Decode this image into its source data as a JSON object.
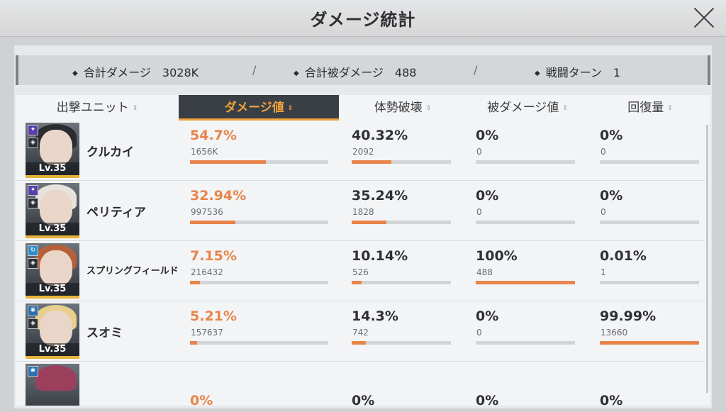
{
  "title": "ダメージ統計",
  "summary": [
    {
      "label": "合計ダメージ",
      "value": "3028K"
    },
    {
      "label": "合計被ダメージ",
      "value": "488"
    },
    {
      "label": "戦闘ターン",
      "value": "1"
    }
  ],
  "summary_sep": "/",
  "headers": [
    {
      "label": "出撃ユニット",
      "active": false
    },
    {
      "label": "ダメージ値",
      "active": true
    },
    {
      "label": "体勢破壊",
      "active": false
    },
    {
      "label": "被ダメージ値",
      "active": false
    },
    {
      "label": "回復量",
      "active": false
    }
  ],
  "sort_glyph": "⇕",
  "rows": [
    {
      "name": "クルカイ",
      "level": "Lv.35",
      "damage": {
        "pct": "54.7%",
        "raw": "1656K",
        "fill": 0.547
      },
      "break": {
        "pct": "40.32%",
        "raw": "2092",
        "fill": 0.4032
      },
      "taken": {
        "pct": "0%",
        "raw": "0",
        "fill": 0
      },
      "heal": {
        "pct": "0%",
        "raw": "0",
        "fill": 0
      }
    },
    {
      "name": "ペリティア",
      "level": "Lv.35",
      "damage": {
        "pct": "32.94%",
        "raw": "997536",
        "fill": 0.3294
      },
      "break": {
        "pct": "35.24%",
        "raw": "1828",
        "fill": 0.3524
      },
      "taken": {
        "pct": "0%",
        "raw": "0",
        "fill": 0
      },
      "heal": {
        "pct": "0%",
        "raw": "0",
        "fill": 0
      }
    },
    {
      "name": "スプリングフィールド",
      "level": "Lv.35",
      "damage": {
        "pct": "7.15%",
        "raw": "216432",
        "fill": 0.0715
      },
      "break": {
        "pct": "10.14%",
        "raw": "526",
        "fill": 0.1014
      },
      "taken": {
        "pct": "100%",
        "raw": "488",
        "fill": 1.0
      },
      "heal": {
        "pct": "0.01%",
        "raw": "1",
        "fill": 0.0001
      }
    },
    {
      "name": "スオミ",
      "level": "Lv.35",
      "damage": {
        "pct": "5.21%",
        "raw": "157637",
        "fill": 0.0521
      },
      "break": {
        "pct": "14.3%",
        "raw": "742",
        "fill": 0.143
      },
      "taken": {
        "pct": "0%",
        "raw": "0",
        "fill": 0
      },
      "heal": {
        "pct": "99.99%",
        "raw": "13660",
        "fill": 0.9999
      }
    },
    {
      "name": "",
      "level": "",
      "damage": {
        "pct": "0%",
        "raw": "",
        "fill": 0
      },
      "break": {
        "pct": "0%",
        "raw": "",
        "fill": 0
      },
      "taken": {
        "pct": "0%",
        "raw": "",
        "fill": 0
      },
      "heal": {
        "pct": "0%",
        "raw": "",
        "fill": 0
      }
    }
  ],
  "colors": {
    "accent": "#e8844a",
    "header_active_bg": "#3a3f46",
    "header_active_text": "#f0a23a",
    "level_border": "#e6b33a"
  }
}
